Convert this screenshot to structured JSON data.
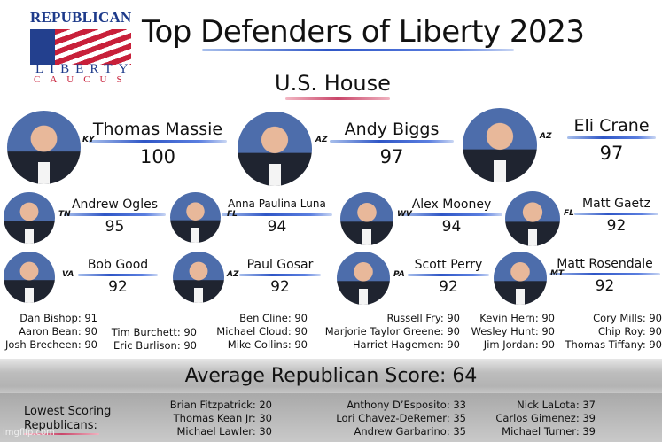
{
  "logo": {
    "line1": "REPUBLICAN",
    "line2": "LIBERTY",
    "line3": "CAUCUS"
  },
  "title": "Top Defenders of Liberty 2023",
  "subtitle": "U.S. House",
  "top_members": [
    {
      "name": "Thomas Massie",
      "state": "KY",
      "score": "100"
    },
    {
      "name": "Andy Biggs",
      "state": "AZ",
      "score": "97"
    },
    {
      "name": "Eli Crane",
      "state": "AZ",
      "score": "97"
    },
    {
      "name": "Andrew Ogles",
      "state": "TN",
      "score": "95"
    },
    {
      "name": "Anna Paulina Luna",
      "state": "FL",
      "score": "94"
    },
    {
      "name": "Alex Mooney",
      "state": "WV",
      "score": "94"
    },
    {
      "name": "Matt Gaetz",
      "state": "FL",
      "score": "92"
    },
    {
      "name": "Bob Good",
      "state": "VA",
      "score": "92"
    },
    {
      "name": "Paul Gosar",
      "state": "AZ",
      "score": "92"
    },
    {
      "name": "Scott Perry",
      "state": "PA",
      "score": "92"
    },
    {
      "name": "Matt Rosendale",
      "state": "MT",
      "score": "92"
    }
  ],
  "other_members": [
    [
      "Dan Bishop: 91",
      "Aaron Bean: 90",
      "Josh Brecheen: 90"
    ],
    [
      "Tim Burchett: 90",
      "Eric Burlison: 90"
    ],
    [
      "Ben Cline: 90",
      "Michael Cloud: 90",
      "Mike Collins: 90"
    ],
    [
      "Russell Fry: 90",
      "Marjorie Taylor Greene: 90",
      "Harriet Hagemen: 90"
    ],
    [
      "Kevin Hern: 90",
      "Wesley Hunt: 90",
      "Jim Jordan: 90"
    ],
    [
      "Cory Mills: 90",
      "Chip Roy: 90",
      "Thomas Tiffany: 90"
    ]
  ],
  "average": "Average Republican Score: 64",
  "lowest_label": "Lowest Scoring Republicans:",
  "lowest": [
    [
      "Brian Fitzpatrick: 20",
      "Thomas Kean Jr: 30",
      "Michael Lawler: 30"
    ],
    [
      "Anthony D’Esposito: 33",
      "Lori Chavez-DeRemer: 35",
      "Andrew Garbarino: 35"
    ],
    [
      "Nick LaLota: 37",
      "Carlos Gimenez: 39",
      "Michael Turner: 39"
    ]
  ],
  "watermark": "imgflip.com"
}
